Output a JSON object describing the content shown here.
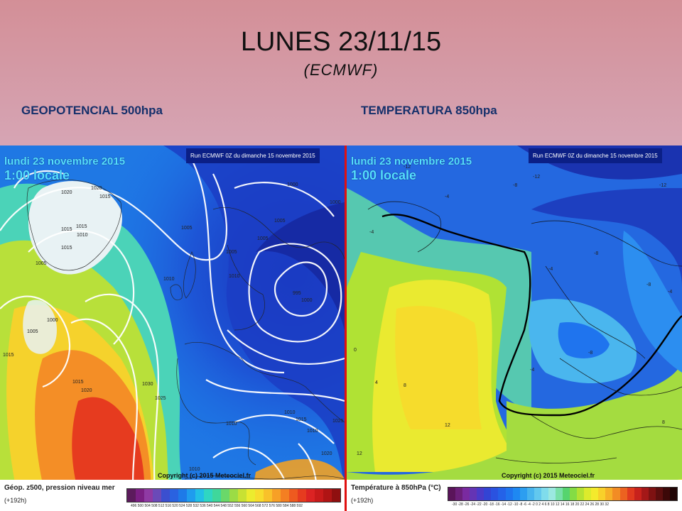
{
  "slide": {
    "title": "LUNES 23/11/15",
    "subtitle": "(ECMWF)",
    "left_label": "GEOPOTENCIAL 500hpa",
    "right_label": "TEMPERATURA 850hpa"
  },
  "left_map": {
    "date": "lundi 23 novembre 2015",
    "time": "1:00 locale",
    "run": "Run ECMWF 0Z du dimanche 15 novembre 2015",
    "copyright": "Copyright (c) 2015 Meteociel.fr",
    "legend_title": "Géop. z500, pression niveau mer",
    "legend_sub": "(+192h)",
    "legend_ticks": "496 500 504 508 512 516 520 524 528 532 536 540 544 548 552 556 560 564 568 572 576 580 584 588 592",
    "pressure_labels": [
      "1020",
      "1020",
      "1015",
      "1015",
      "1015",
      "1010",
      "1015",
      "1005",
      "1005",
      "1000",
      "1005",
      "1015",
      "1015",
      "1020",
      "1030",
      "1025",
      "1010",
      "1005",
      "1005",
      "1010",
      "1000",
      "1000",
      "1005",
      "995",
      "1000",
      "1010",
      "1010",
      "1015",
      "1010",
      "1025",
      "1020",
      "1010"
    ],
    "legend_colors": [
      "#5c1b5c",
      "#7b1f84",
      "#8f3aa4",
      "#6b4ab8",
      "#3b4fcf",
      "#2a62e0",
      "#1e7ae8",
      "#1f9cee",
      "#22bfe6",
      "#2fd6c2",
      "#3fd79b",
      "#6ad86a",
      "#9bdc45",
      "#c8e133",
      "#ecec2e",
      "#f8dc2d",
      "#f9c12a",
      "#f7a026",
      "#f47f22",
      "#ee5a1f",
      "#e63b1f",
      "#dc2323",
      "#c81a1a",
      "#b01414",
      "#8f0f0f"
    ]
  },
  "right_map": {
    "date": "lundi 23 novembre 2015",
    "time": "1:00 locale",
    "run": "Run ECMWF 0Z du dimanche 15 novembre 2015",
    "copyright": "Copyright (c) 2015 Meteociel.fr",
    "legend_title": "Température à 850hPa (°C)",
    "legend_sub": "(+192h)",
    "legend_ticks": "-30 -28 -26 -24 -22 -20 -18 -16 -14 -12 -10 -8 -6 -4 -2 0 2 4 6 8 10 12 14 16 18 20 22 24 26 28 30 32",
    "temperature_labels": [
      "-12",
      "-12",
      "-8",
      "-12",
      "-4",
      "-4",
      "-8",
      "-4",
      "-8",
      "-4",
      "-8",
      "-4",
      "0",
      "4",
      "8",
      "8",
      "12",
      "12"
    ],
    "legend_colors": [
      "#5a145a",
      "#6c1f7a",
      "#7a2aa0",
      "#6434b4",
      "#4a3ac8",
      "#3344d4",
      "#2a52e0",
      "#2462e8",
      "#1f74ee",
      "#1e88f2",
      "#2c9ef0",
      "#47b4ee",
      "#62c8ee",
      "#7fdcec",
      "#9be8e0",
      "#78e0a8",
      "#56d46e",
      "#84dc44",
      "#b4e232",
      "#dceb2c",
      "#f4ea2c",
      "#f8d02a",
      "#f6b027",
      "#f28c24",
      "#ec6220",
      "#e03a1e",
      "#c8221c",
      "#a41818",
      "#7e1212",
      "#5c0e0e",
      "#3c0808",
      "#200404"
    ]
  }
}
